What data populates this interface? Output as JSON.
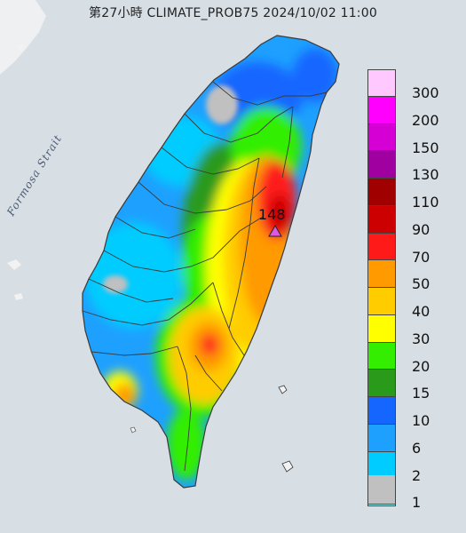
{
  "title": "第27小時  CLIMATE_PROB75 2024/10/02 11:00",
  "map": {
    "sea_label": "Formosa Strait",
    "max_value_label": "148",
    "colors": {
      "sea": "#d7dee4",
      "land_mainland": "#f2f2f2",
      "county_border": "#3a3a3a",
      "max_marker": "#d85ae0"
    }
  },
  "legend": {
    "items": [
      {
        "label": "300",
        "color": "#ffc8ff"
      },
      {
        "label": "200",
        "color": "#ff00ff"
      },
      {
        "label": "150",
        "color": "#d400d4"
      },
      {
        "label": "130",
        "color": "#a000a0"
      },
      {
        "label": "110",
        "color": "#a00000"
      },
      {
        "label": "90",
        "color": "#cc0000"
      },
      {
        "label": "70",
        "color": "#ff1a1a"
      },
      {
        "label": "50",
        "color": "#ff9a00"
      },
      {
        "label": "40",
        "color": "#ffcc00"
      },
      {
        "label": "30",
        "color": "#ffff00"
      },
      {
        "label": "20",
        "color": "#33ee00"
      },
      {
        "label": "15",
        "color": "#2a9a1a"
      },
      {
        "label": "10",
        "color": "#1466ff"
      },
      {
        "label": "6",
        "color": "#1ea0ff"
      },
      {
        "label": "2",
        "color": "#00ccff"
      },
      {
        "label": "1",
        "color": "#99ffff"
      },
      {
        "label": "",
        "color": "#c0c0c0"
      }
    ]
  }
}
